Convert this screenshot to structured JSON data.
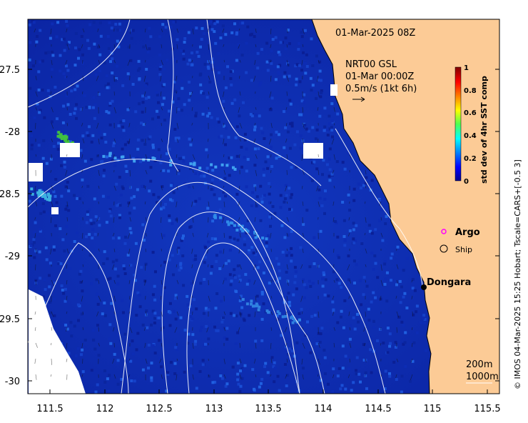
{
  "map": {
    "title_time": "01-Mar-2025 08Z",
    "current_source": "NRT00 GSL",
    "current_time": "01-Mar 00:00Z",
    "vector_scale": "0.5m/s (1kt 6h)",
    "x_ticks": [
      "111.5",
      "112",
      "112.5",
      "113",
      "113.5",
      "114",
      "114.5",
      "115",
      "115.5"
    ],
    "y_ticks": [
      "-27.5",
      "-28",
      "-28.5",
      "-29",
      "-29.5",
      "-30"
    ],
    "legend": {
      "argo": "Argo",
      "ship": "Ship"
    },
    "place": "Dongara",
    "contours": {
      "c200": "200m",
      "c1000": "1000m"
    }
  },
  "colorbar": {
    "label": "std dev of 4hr SST comp",
    "ticks": [
      "1",
      "0.8",
      "0.6",
      "0.4",
      "0.2",
      "0"
    ]
  },
  "credit": "© IMOS 04-Mar-2025 15:25 Hobart; Tscale=CARS+[-0.5 3]",
  "colors": {
    "ocean": "#0b2aa8",
    "land": "#fccb96",
    "argo": "#ff00ff"
  }
}
